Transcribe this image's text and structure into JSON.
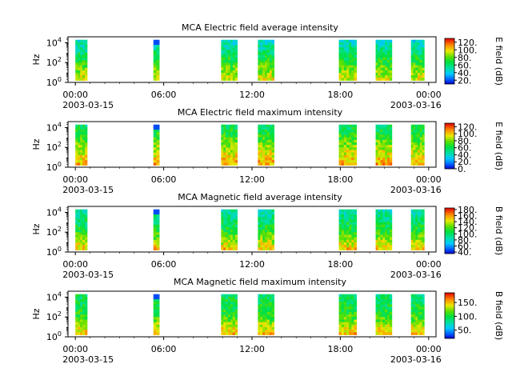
{
  "chart_data": [
    {
      "type": "heatmap",
      "title": "MCA  Electric field average intensity",
      "ylabel": "Hz",
      "colorbar_label": "E field (dB)",
      "colorbar_ticks": [
        "20.",
        "40.",
        "60.",
        "80.",
        "100.",
        "120."
      ],
      "colorbar_range": [
        10,
        130
      ],
      "x_tick_labels": [
        "00:00",
        "06:00",
        "12:00",
        "18:00",
        "00:00"
      ],
      "x_dates": [
        "2003-03-15",
        "2003-03-16"
      ],
      "y_tick_labels": [
        "10^0",
        "10^2",
        "10^4"
      ],
      "ylim_log10": [
        0,
        4.6
      ],
      "xlim_hours": [
        -0.5,
        24.5
      ],
      "segments_hours": [
        [
          0.0,
          0.8
        ],
        [
          5.3,
          5.7
        ],
        [
          9.9,
          11.0
        ],
        [
          12.4,
          13.5
        ],
        [
          17.9,
          19.1
        ],
        [
          20.4,
          21.5
        ],
        [
          22.8,
          23.7
        ]
      ],
      "typical_level": {
        "low_freq": 95,
        "mid_freq": 70,
        "high_freq": 45
      }
    },
    {
      "type": "heatmap",
      "title": "MCA  Electric field maximum intensity",
      "ylabel": "Hz",
      "colorbar_label": "E field (dB)",
      "colorbar_ticks": [
        "0.",
        "20.",
        "40.",
        "60.",
        "80.",
        "100.",
        "120."
      ],
      "colorbar_range": [
        0,
        130
      ],
      "x_tick_labels": [
        "00:00",
        "06:00",
        "12:00",
        "18:00",
        "00:00"
      ],
      "x_dates": [
        "2003-03-15",
        "2003-03-16"
      ],
      "y_tick_labels": [
        "10^0",
        "10^2",
        "10^4"
      ],
      "ylim_log10": [
        0,
        4.6
      ],
      "xlim_hours": [
        -0.5,
        24.5
      ],
      "segments_hours": [
        [
          0.0,
          0.8
        ],
        [
          5.3,
          5.7
        ],
        [
          9.9,
          11.0
        ],
        [
          12.4,
          13.5
        ],
        [
          17.9,
          19.1
        ],
        [
          20.4,
          21.5
        ],
        [
          22.8,
          23.7
        ]
      ],
      "typical_level": {
        "low_freq": 105,
        "mid_freq": 80,
        "high_freq": 55
      }
    },
    {
      "type": "heatmap",
      "title": "MCA  Magnetic field average intensity",
      "ylabel": "Hz",
      "colorbar_label": "B field (dB)",
      "colorbar_ticks": [
        "40.",
        "60.",
        "80.",
        "100.",
        "120.",
        "140.",
        "160.",
        "180."
      ],
      "colorbar_range": [
        35,
        185
      ],
      "x_tick_labels": [
        "00:00",
        "06:00",
        "12:00",
        "18:00",
        "00:00"
      ],
      "x_dates": [
        "2003-03-15",
        "2003-03-16"
      ],
      "y_tick_labels": [
        "10^0",
        "10^2",
        "10^4"
      ],
      "ylim_log10": [
        0,
        4.6
      ],
      "xlim_hours": [
        -0.5,
        24.5
      ],
      "segments_hours": [
        [
          0.0,
          0.8
        ],
        [
          5.3,
          5.7
        ],
        [
          9.9,
          11.0
        ],
        [
          12.4,
          13.5
        ],
        [
          17.9,
          19.1
        ],
        [
          20.4,
          21.5
        ],
        [
          22.8,
          23.7
        ]
      ],
      "typical_level": {
        "low_freq": 150,
        "mid_freq": 110,
        "high_freq": 85
      }
    },
    {
      "type": "heatmap",
      "title": "MCA  Magnetic field maximum intensity",
      "ylabel": "Hz",
      "colorbar_label": "B field (dB)",
      "colorbar_ticks": [
        "50.",
        "100.",
        "150."
      ],
      "colorbar_range": [
        20,
        185
      ],
      "x_tick_labels": [
        "00:00",
        "06:00",
        "12:00",
        "18:00",
        "00:00"
      ],
      "x_dates": [
        "2003-03-15",
        "2003-03-16"
      ],
      "y_tick_labels": [
        "10^0",
        "10^2",
        "10^4"
      ],
      "ylim_log10": [
        0,
        4.6
      ],
      "xlim_hours": [
        -0.5,
        24.5
      ],
      "segments_hours": [
        [
          0.0,
          0.8
        ],
        [
          5.3,
          5.7
        ],
        [
          9.9,
          11.0
        ],
        [
          12.4,
          13.5
        ],
        [
          17.9,
          19.1
        ],
        [
          20.4,
          21.5
        ],
        [
          22.8,
          23.7
        ]
      ],
      "typical_level": {
        "low_freq": 150,
        "mid_freq": 105,
        "high_freq": 90
      }
    }
  ]
}
